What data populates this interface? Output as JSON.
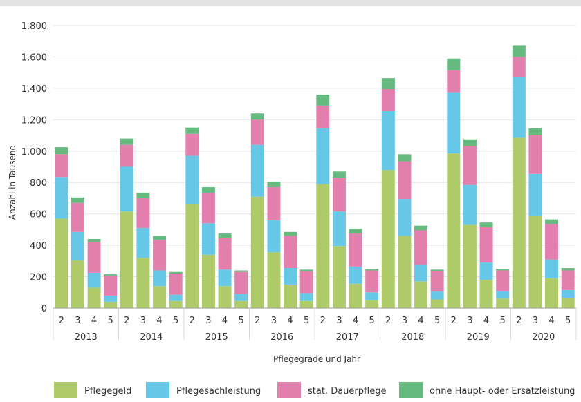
{
  "chart_data": {
    "type": "bar",
    "stacked": true,
    "title": "",
    "xlabel": "Pflegegrade und Jahr",
    "ylabel": "Anzahl in Tausend",
    "ylim": [
      0,
      1800
    ],
    "yticks": [
      0,
      200,
      400,
      600,
      800,
      1000,
      1200,
      1400,
      1600,
      1800
    ],
    "ytick_labels": [
      "0",
      "200",
      "400",
      "600",
      "800",
      "1.000",
      "1.200",
      "1.400",
      "1.600",
      "1.800"
    ],
    "grid": "horizontal",
    "legend_position": "bottom",
    "years": [
      "2013",
      "2014",
      "2015",
      "2016",
      "2017",
      "2018",
      "2019",
      "2020"
    ],
    "grades": [
      "2",
      "3",
      "4",
      "5"
    ],
    "series": [
      {
        "name": "Pflegegeld",
        "color": "#afcb69",
        "values": [
          570,
          305,
          130,
          40,
          615,
          320,
          140,
          45,
          660,
          340,
          140,
          45,
          710,
          355,
          150,
          45,
          790,
          395,
          155,
          50,
          880,
          460,
          170,
          55,
          985,
          530,
          180,
          60,
          1085,
          590,
          190,
          65
        ]
      },
      {
        "name": "Pflegesachleistung",
        "color": "#66c8e6",
        "values": [
          265,
          180,
          95,
          40,
          285,
          190,
          100,
          40,
          310,
          200,
          105,
          45,
          330,
          205,
          105,
          50,
          355,
          220,
          110,
          50,
          375,
          235,
          105,
          50,
          390,
          255,
          110,
          50,
          385,
          265,
          120,
          50
        ]
      },
      {
        "name": "stat. Dauerpflege",
        "color": "#e37fad",
        "values": [
          145,
          185,
          195,
          125,
          140,
          190,
          195,
          135,
          140,
          195,
          200,
          140,
          160,
          210,
          205,
          140,
          145,
          215,
          210,
          140,
          140,
          240,
          220,
          130,
          140,
          245,
          225,
          130,
          130,
          245,
          225,
          125
        ]
      },
      {
        "name": "ohne Haupt- oder Ersatzleistung",
        "color": "#66b97f",
        "values": [
          45,
          35,
          20,
          10,
          40,
          35,
          25,
          10,
          40,
          35,
          30,
          10,
          40,
          35,
          25,
          10,
          70,
          40,
          30,
          10,
          70,
          45,
          30,
          10,
          75,
          45,
          30,
          10,
          75,
          45,
          30,
          15
        ]
      }
    ]
  }
}
